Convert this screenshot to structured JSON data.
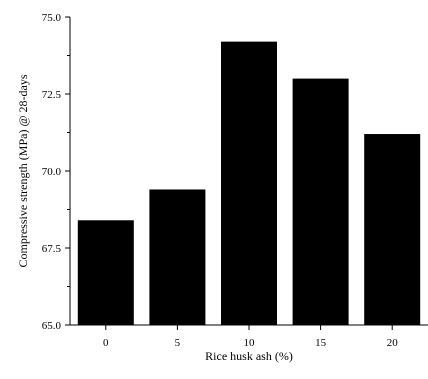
{
  "chart_data": {
    "type": "bar",
    "categories": [
      "0",
      "5",
      "10",
      "15",
      "20"
    ],
    "values": [
      68.4,
      69.4,
      74.2,
      73.0,
      71.2
    ],
    "xlabel": "Rice husk ash (%)",
    "ylabel": "Compressive strength (MPa) @ 28-days",
    "ylim": [
      65.0,
      75.0
    ],
    "yticks": [
      65.0,
      67.5,
      70.0,
      72.5,
      75.0
    ],
    "ytick_labels": [
      "65.0",
      "67.5",
      "70.0",
      "72.5",
      "75.0"
    ],
    "grid": false,
    "legend": "none",
    "bar_color": "#000000"
  }
}
